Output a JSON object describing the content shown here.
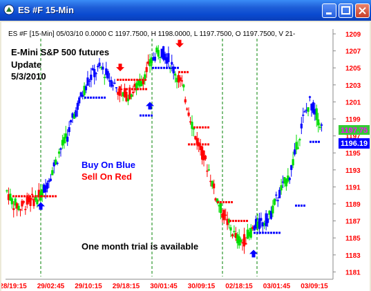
{
  "window": {
    "title": "ES #F 15-Min",
    "buttons": {
      "minimize": "minimize",
      "maximize": "maximize",
      "close": "close"
    }
  },
  "chart_header": "ES #F [15-Min] 05/03/10 0.0000 C 1197.7500, H 1198.0000, L 1197.7500, O 1197.7500, V 21-",
  "annotations": {
    "title_line1": "E-Mini S&P 500 futures",
    "title_line2": "Update",
    "title_line3": "5/3/2010",
    "buy": "Buy On Blue",
    "sell": "Sell On Red",
    "trial": "One month trial is available"
  },
  "colors": {
    "up": "#00dd00",
    "down": "#ff0000",
    "blue": "#0000ff",
    "axis_text": "#ff0000",
    "grid": "#008000",
    "price_tag_green": "#33cc33",
    "price_tag_blue": "#0000ff"
  },
  "price_tags": {
    "green": "1197.75",
    "blue": "1196.19"
  },
  "chart_data": {
    "type": "candlestick",
    "instrument": "ES #F",
    "interval": "15-Min",
    "yaxis_ticks": [
      "1209",
      "1207",
      "1205",
      "1203",
      "1201",
      "1199",
      "1197",
      "1195",
      "1193",
      "1191",
      "1189",
      "1187",
      "1185",
      "1183",
      "1181"
    ],
    "ylim": [
      1181,
      1209
    ],
    "xaxis_ticks": [
      "28/19:15",
      "29/02:45",
      "29/10:15",
      "29/18:15",
      "30/01:45",
      "30/09:15",
      "02/18:15",
      "03/01:45",
      "03/09:15"
    ],
    "session_separators_after_tick": [
      1,
      3,
      4,
      7
    ],
    "regimes": [
      {
        "color": "blue",
        "from": "29/02:45",
        "to": "29/18:15"
      },
      {
        "color": "red",
        "from": "29/18:15",
        "to": "30/01:45"
      },
      {
        "color": "blue",
        "from": "30/01:45",
        "to": "30/09:15"
      },
      {
        "color": "red",
        "from": "30/09:15",
        "to": "03/01:45"
      },
      {
        "color": "blue",
        "from": "03/01:45",
        "to": "03/09:15"
      }
    ],
    "close_path": [
      1190.5,
      1189.0,
      1188.6,
      1189.2,
      1189.5,
      1190.0,
      1191.5,
      1193.5,
      1195.5,
      1197.0,
      1199.5,
      1201.5,
      1203.5,
      1204.5,
      1205.0,
      1204.0,
      1203.0,
      1202.0,
      1201.8,
      1202.5,
      1203.5,
      1205.0,
      1206.5,
      1207.0,
      1206.0,
      1204.5,
      1203.0,
      1200.0,
      1197.0,
      1195.0,
      1193.0,
      1190.0,
      1188.0,
      1186.5,
      1185.0,
      1184.5,
      1185.5,
      1186.5,
      1186.8,
      1187.5,
      1189.5,
      1191.0,
      1192.5,
      1195.5,
      1199.0,
      1201.0,
      1199.5,
      1197.5
    ]
  }
}
